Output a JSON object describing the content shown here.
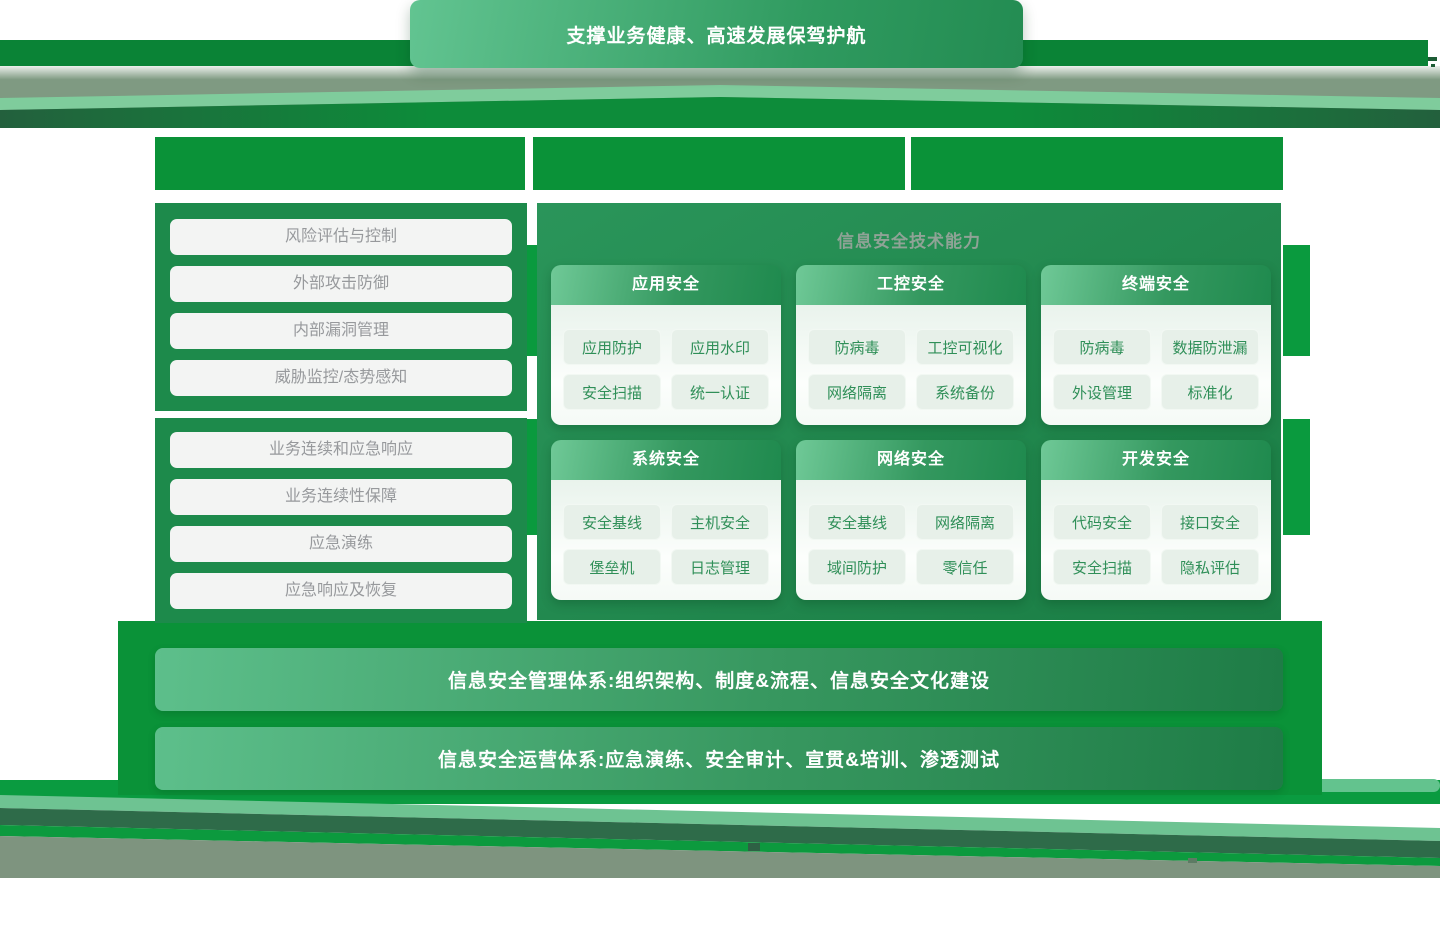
{
  "banner": {
    "label": "支撑业务健康、高速发展保驾护航"
  },
  "left_column": {
    "groups": [
      {
        "items": [
          "风险评估与控制",
          "外部攻击防御",
          "内部漏洞管理",
          "威胁监控/态势感知"
        ]
      },
      {
        "items": [
          "业务连续和应急响应",
          "业务连续性保障",
          "应急演练",
          "应急响应及恢复"
        ]
      }
    ]
  },
  "tech_panel": {
    "title": "信息安全技术能力",
    "cards": [
      {
        "title": "应用安全",
        "items": [
          "应用防护",
          "应用水印",
          "安全扫描",
          "统一认证"
        ]
      },
      {
        "title": "工控安全",
        "items": [
          "防病毒",
          "工控可视化",
          "网络隔离",
          "系统备份"
        ]
      },
      {
        "title": "终端安全",
        "items": [
          "防病毒",
          "数据防泄漏",
          "外设管理",
          "标准化"
        ]
      },
      {
        "title": "系统安全",
        "items": [
          "安全基线",
          "主机安全",
          "堡垒机",
          "日志管理"
        ]
      },
      {
        "title": "网络安全",
        "items": [
          "安全基线",
          "网络隔离",
          "域间防护",
          "零信任"
        ]
      },
      {
        "title": "开发安全",
        "items": [
          "代码安全",
          "接口安全",
          "安全扫描",
          "隐私评估"
        ]
      }
    ]
  },
  "bottom_bars": [
    {
      "label": "信息安全管理体系:组织架构、制度&流程、信息安全文化建设"
    },
    {
      "label": "信息安全运营体系:应急演练、安全审计、宣贯&培训、渗透测试"
    }
  ],
  "colors": {
    "bright_green": "#0a9238",
    "deep_panel_green": "#1d8a4b",
    "card_header_gradient_start": "#6fc997",
    "card_header_gradient_end": "#1f8a4e",
    "card_item_bg": "#e7f0e9",
    "card_item_text": "#2f8f58",
    "left_item_bg": "#f3f4f3",
    "left_item_text": "#97999c",
    "tech_title_gray": "#8fa396",
    "roof_sage": "#7f9a82",
    "base_gray": "#7e947f",
    "text_white": "#ffffff"
  }
}
